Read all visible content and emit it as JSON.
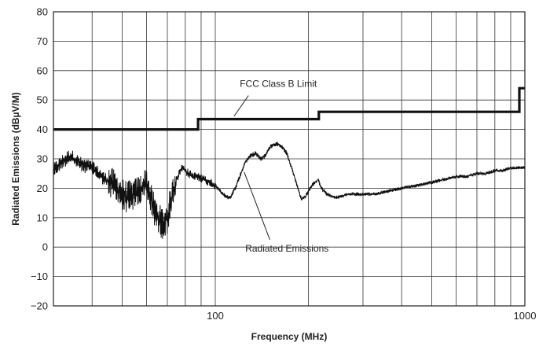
{
  "chart_data": {
    "type": "line",
    "xlabel": "Frequency (MHz)",
    "ylabel": "Radiated Emissions (dBµV/M)",
    "xscale": "log",
    "xlim": [
      30,
      1000
    ],
    "ylim": [
      -20,
      80
    ],
    "grid": true,
    "x_tick_labels": [
      {
        "value": 100,
        "label": "100"
      },
      {
        "value": 1000,
        "label": "1000"
      }
    ],
    "y_ticks": [
      -20,
      -10,
      0,
      10,
      20,
      30,
      40,
      50,
      60,
      70,
      80
    ],
    "y_tick_labels": [
      "−20",
      "−10",
      "0",
      "10",
      "20",
      "30",
      "40",
      "50",
      "60",
      "70",
      "80"
    ],
    "series": [
      {
        "name": "FCC Class B Limit",
        "style": "step",
        "x": [
          30,
          88,
          88,
          216,
          216,
          960,
          960,
          1000
        ],
        "y": [
          40,
          40,
          43.5,
          43.5,
          46,
          46,
          54,
          54
        ]
      },
      {
        "name": "Radiated Emissions",
        "x": [
          30,
          32,
          34,
          35,
          37,
          40,
          42,
          44,
          46,
          48,
          50,
          52,
          55,
          58,
          60,
          62,
          64,
          66,
          68,
          70,
          72,
          75,
          78,
          80,
          82,
          85,
          88,
          92,
          96,
          100,
          104,
          108,
          112,
          116,
          120,
          125,
          130,
          135,
          140,
          145,
          150,
          155,
          160,
          165,
          170,
          175,
          180,
          185,
          190,
          195,
          200,
          205,
          210,
          215,
          220,
          230,
          240,
          250,
          270,
          300,
          330,
          360,
          400,
          450,
          500,
          550,
          600,
          650,
          700,
          750,
          800,
          850,
          900,
          950,
          1000
        ],
        "y": [
          26,
          29,
          31,
          30,
          28,
          27,
          25,
          23,
          22,
          20,
          18,
          17,
          18,
          20,
          22,
          16,
          12,
          9,
          8,
          10,
          16,
          23,
          27,
          26,
          25,
          24,
          24,
          23,
          22,
          21,
          19,
          17,
          17,
          20,
          24,
          29,
          31,
          32,
          30,
          31,
          34,
          35,
          35,
          34,
          32,
          28,
          24,
          20,
          16,
          17,
          19,
          21,
          22,
          23,
          20,
          18,
          17,
          17,
          18,
          18,
          18,
          19,
          20,
          21,
          22,
          23,
          24,
          24,
          25,
          25,
          26,
          26,
          27,
          27,
          27
        ]
      }
    ],
    "annotations": [
      {
        "text": "FCC Class B Limit",
        "target_series": "FCC Class B Limit"
      },
      {
        "text": "Radiated Emissions",
        "target_series": "Radiated Emissions"
      }
    ]
  }
}
